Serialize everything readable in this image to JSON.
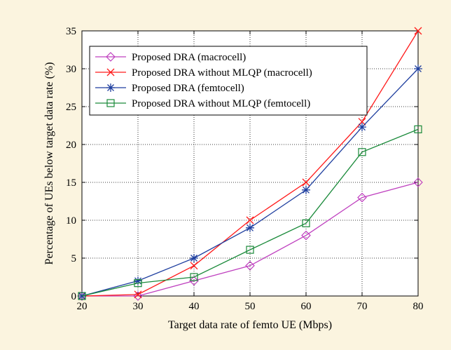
{
  "colors": {
    "page_background": "#fbf4df",
    "plot_background": "#ffffff",
    "axis": "#000000",
    "grid": "#000000"
  },
  "chart_data": {
    "type": "line",
    "title": "",
    "xlabel": "Target data rate of femto UE (Mbps)",
    "ylabel": "Percentage of UEs below target data rate (%)",
    "xlim": [
      20,
      80
    ],
    "ylim": [
      0,
      35
    ],
    "x_ticks": [
      20,
      30,
      40,
      50,
      60,
      70,
      80
    ],
    "y_ticks": [
      0,
      5,
      10,
      15,
      20,
      25,
      30,
      35
    ],
    "grid": true,
    "grid_style": "dotted",
    "legend_position": "top-left",
    "x": [
      20,
      30,
      40,
      50,
      60,
      70,
      80
    ],
    "series": [
      {
        "name": "Proposed DRA (macrocell)",
        "marker": "diamond",
        "color": "#bf40bf",
        "values": [
          0,
          0,
          2,
          4,
          8,
          13,
          15
        ]
      },
      {
        "name": "Proposed DRA without MLQP (macrocell)",
        "marker": "x",
        "color": "#ff1a1a",
        "values": [
          0,
          0.2,
          4,
          10,
          15,
          23,
          35
        ]
      },
      {
        "name": "Proposed DRA (femtocell)",
        "marker": "asterisk",
        "color": "#1f3f9f",
        "values": [
          0,
          2,
          5,
          9,
          14,
          22.3,
          30
        ]
      },
      {
        "name": "Proposed DRA without MLQP (femtocell)",
        "marker": "square",
        "color": "#1a8a3a",
        "values": [
          0,
          1.7,
          2.5,
          6.1,
          9.6,
          19,
          22
        ]
      }
    ]
  }
}
